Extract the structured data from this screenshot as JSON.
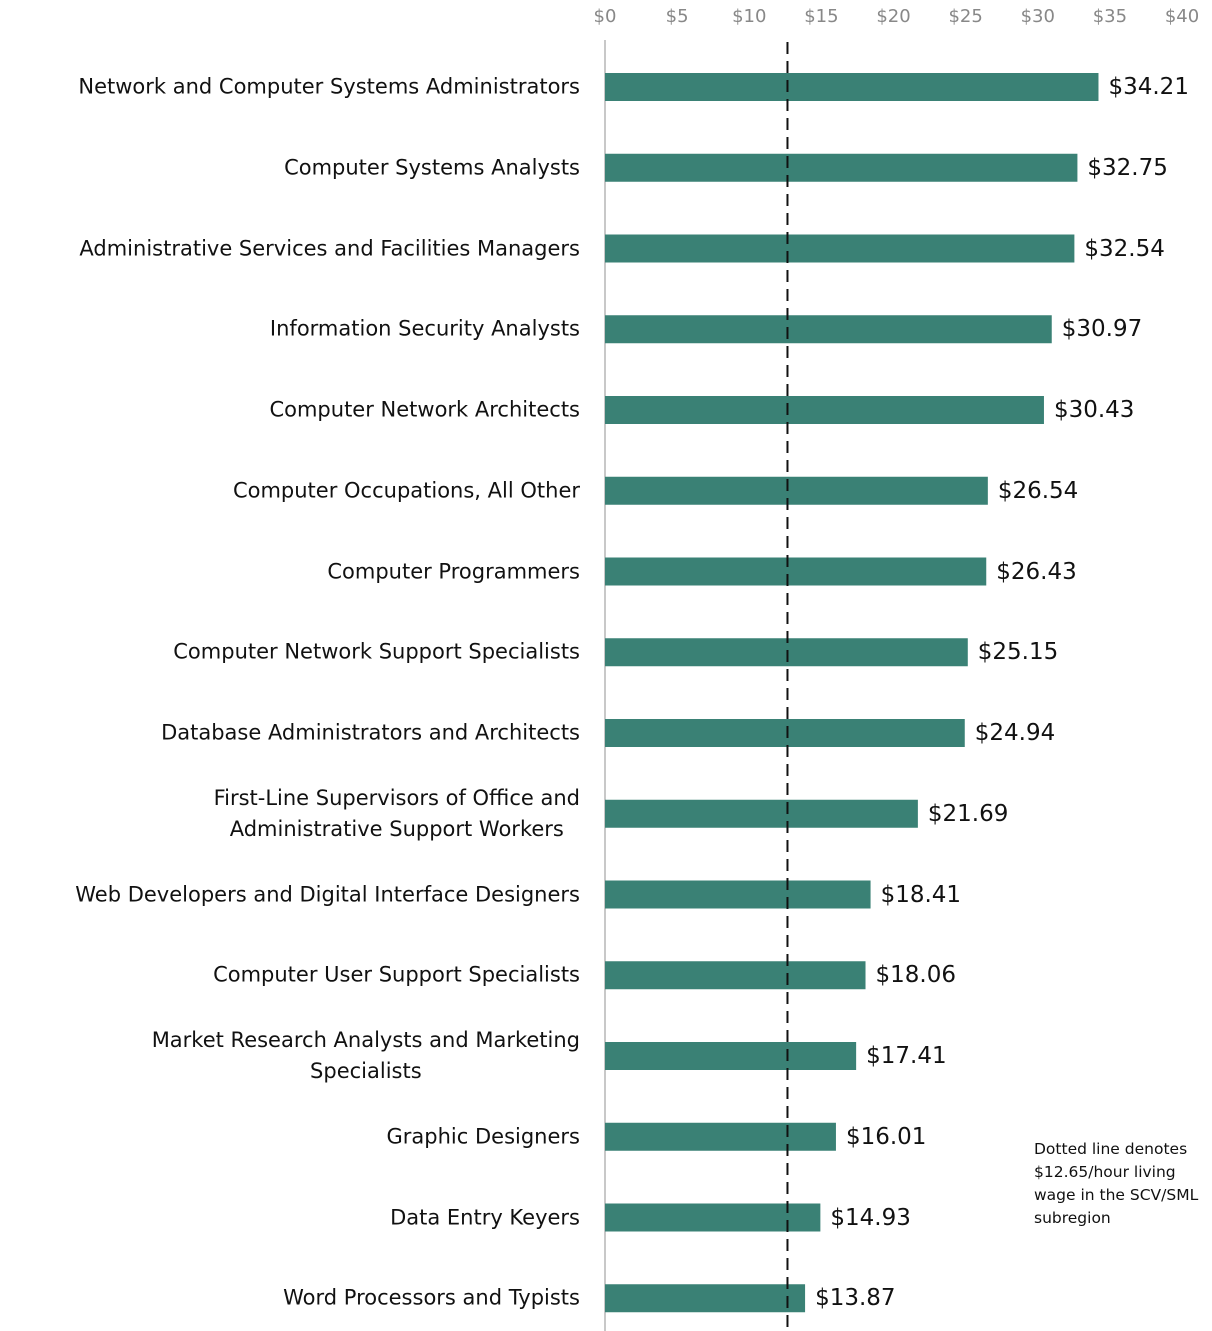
{
  "chart_data": {
    "type": "bar",
    "orientation": "horizontal",
    "categories": [
      "Network and Computer Systems Administrators",
      "Computer Systems Analysts",
      "Administrative Services and Facilities Managers",
      "Information Security Analysts",
      "Computer Network Architects",
      "Computer Occupations, All Other",
      "Computer Programmers",
      "Computer Network Support Specialists",
      "Database Administrators and Architects",
      "First-Line Supervisors of Office and\nAdministrative Support Workers",
      "Web Developers and Digital Interface Designers",
      "Computer User Support Specialists",
      "Market Research Analysts and Marketing\nSpecialists",
      "Graphic Designers",
      "Data Entry Keyers",
      "Word Processors and Typists"
    ],
    "values": [
      34.21,
      32.75,
      32.54,
      30.97,
      30.43,
      26.54,
      26.43,
      25.15,
      24.94,
      21.69,
      18.41,
      18.06,
      17.41,
      16.01,
      14.93,
      13.87
    ],
    "value_labels": [
      "$34.21",
      "$32.75",
      "$32.54",
      "$30.97",
      "$30.43",
      "$26.54",
      "$26.43",
      "$25.15",
      "$24.94",
      "$21.69",
      "$18.41",
      "$18.06",
      "$17.41",
      "$16.01",
      "$14.93",
      "$13.87"
    ],
    "color": "#3a8175",
    "xlim": [
      0,
      40
    ],
    "xticks": [
      {
        "value": 0,
        "label": "$0"
      },
      {
        "value": 5,
        "label": "$5"
      },
      {
        "value": 10,
        "label": "$10"
      },
      {
        "value": 15,
        "label": "$15"
      },
      {
        "value": 20,
        "label": "$20"
      },
      {
        "value": 25,
        "label": "$25"
      },
      {
        "value": 30,
        "label": "$30"
      },
      {
        "value": 35,
        "label": "$35"
      },
      {
        "value": 40,
        "label": "$40"
      }
    ],
    "reference_value": 12.65,
    "annotation": "Dotted line denotes $12.65/hour living wage in the SCV/SML subregion"
  }
}
